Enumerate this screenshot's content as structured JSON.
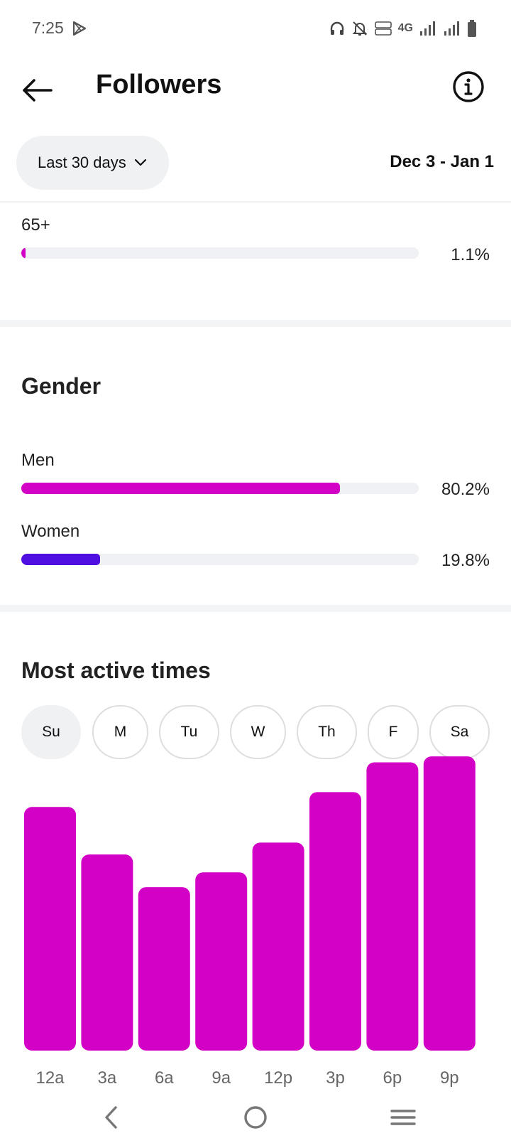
{
  "status_bar": {
    "time": "7:25",
    "network": "4G",
    "icons": [
      "play-store-icon",
      "headphones-icon",
      "bell-muted-icon",
      "volte-icon",
      "signal-icon",
      "battery-icon"
    ]
  },
  "header": {
    "title": "Followers",
    "icons": [
      "back-arrow-icon",
      "info-icon"
    ]
  },
  "filter": {
    "range_label": "Last 30 days",
    "date_range": "Dec 3 - Jan 1"
  },
  "age": {
    "rows": [
      {
        "label": "65+",
        "value": "1.1%",
        "fraction": 0.011,
        "color": "#d300c5"
      }
    ]
  },
  "gender": {
    "title": "Gender",
    "rows": [
      {
        "label": "Men",
        "value": "80.2%",
        "fraction": 0.802,
        "color": "#d300c5"
      },
      {
        "label": "Women",
        "value": "19.8%",
        "fraction": 0.198,
        "color": "#4f0fe0"
      }
    ]
  },
  "active_times": {
    "title": "Most active times",
    "days": [
      {
        "label": "Su",
        "selected": true
      },
      {
        "label": "M",
        "selected": false
      },
      {
        "label": "Tu",
        "selected": false
      },
      {
        "label": "W",
        "selected": false
      },
      {
        "label": "Th",
        "selected": false
      },
      {
        "label": "F",
        "selected": false
      },
      {
        "label": "Sa",
        "selected": false
      }
    ]
  },
  "chart_data": {
    "type": "bar",
    "categories": [
      "12a",
      "3a",
      "6a",
      "9a",
      "12p",
      "3p",
      "6p",
      "9p"
    ],
    "values": [
      82,
      66,
      55,
      60,
      70,
      87,
      97,
      99
    ],
    "ylim": [
      0,
      100
    ],
    "grid": false,
    "color": "#d300c5"
  },
  "nav_bar": {
    "icons": [
      "nav-back-icon",
      "nav-home-icon",
      "nav-menu-icon"
    ]
  }
}
